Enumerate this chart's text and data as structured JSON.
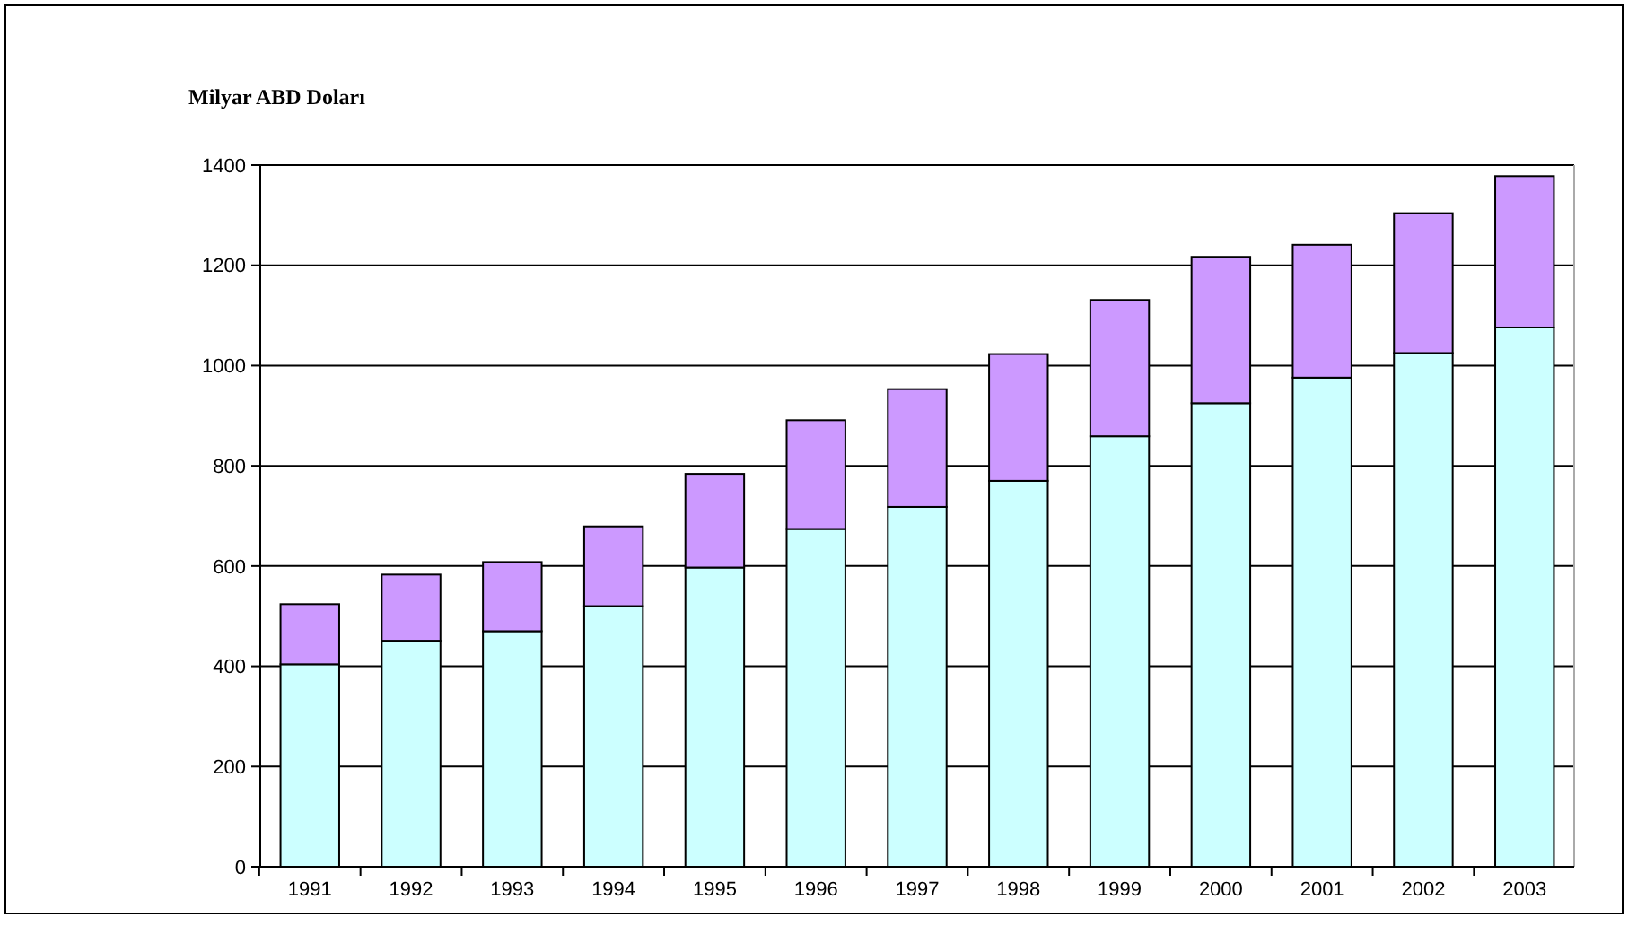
{
  "chart_data": {
    "type": "bar",
    "ylabel": "Milyar ABD Doları",
    "stacked": true,
    "grid": "y",
    "categories": [
      "1991",
      "1992",
      "1993",
      "1994",
      "1995",
      "1996",
      "1997",
      "1998",
      "1999",
      "2000",
      "2001",
      "2002",
      "2003"
    ],
    "series": [
      {
        "color": "#ccffff",
        "values": [
          404,
          451,
          470,
          520,
          597,
          674,
          718,
          770,
          859,
          925,
          976,
          1025,
          1076
        ]
      },
      {
        "color": "#cc99ff",
        "values": [
          120,
          132,
          138,
          159,
          187,
          217,
          235,
          253,
          272,
          292,
          265,
          279,
          302
        ]
      }
    ],
    "ylim": [
      0,
      1400
    ],
    "yticks": [
      0,
      200,
      400,
      600,
      800,
      1000,
      1200,
      1400
    ]
  }
}
